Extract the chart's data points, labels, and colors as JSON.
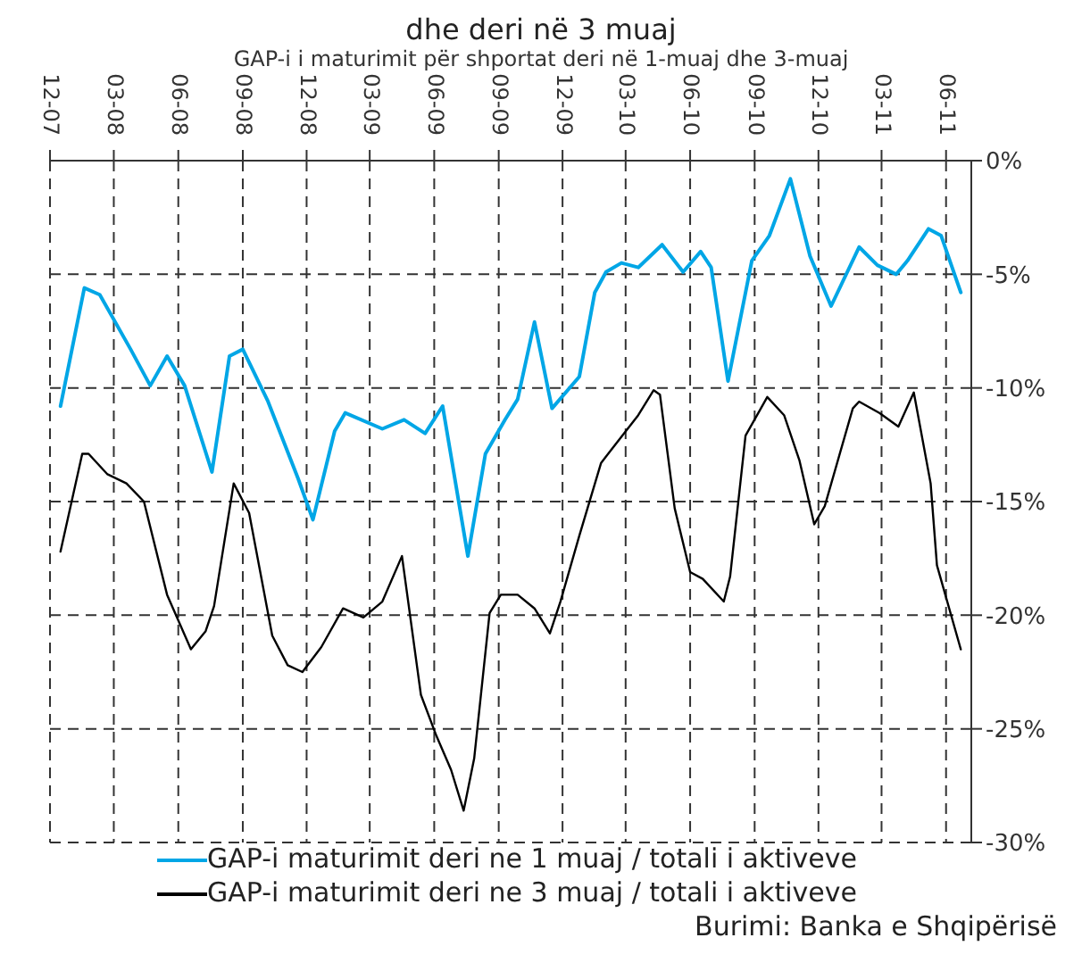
{
  "chart_data": {
    "type": "line",
    "title": "dhe deri në 3 muaj",
    "subtitle": "GAP-i i maturimit për shportat deri në 1-muaj dhe 3-muaj",
    "xlim": [
      "2007-12-01",
      "2011-07-07"
    ],
    "xticks": [
      {
        "value": "2007-12",
        "label": "12-07"
      },
      {
        "value": "2008-03",
        "label": "03-08"
      },
      {
        "value": "2008-06",
        "label": "06-08"
      },
      {
        "value": "2008-09",
        "label": "09-08"
      },
      {
        "value": "2008-12",
        "label": "12-08"
      },
      {
        "value": "2009-03",
        "label": "03-09"
      },
      {
        "value": "2009-06",
        "label": "06-09"
      },
      {
        "value": "2009-09",
        "label": "09-09"
      },
      {
        "value": "2009-12",
        "label": "12-09"
      },
      {
        "value": "2010-03",
        "label": "03-10"
      },
      {
        "value": "2010-06",
        "label": "06-10"
      },
      {
        "value": "2010-09",
        "label": "09-10"
      },
      {
        "value": "2010-12",
        "label": "12-10"
      },
      {
        "value": "2011-03",
        "label": "03-11"
      },
      {
        "value": "2011-06",
        "label": "06-11"
      }
    ],
    "ylim": [
      -30,
      0
    ],
    "yticks": [
      {
        "value": 0,
        "label": "0%"
      },
      {
        "value": -5,
        "label": "-5%"
      },
      {
        "value": -10,
        "label": "-10%"
      },
      {
        "value": -15,
        "label": "-15%"
      },
      {
        "value": -20,
        "label": "-20%"
      },
      {
        "value": -25,
        "label": "-25%"
      },
      {
        "value": -30,
        "label": "-30%"
      }
    ],
    "grid": true,
    "line_style": "solid",
    "legend": "bottom",
    "series": [
      {
        "name": "GAP-i maturimit deri ne 1 muaj / totali i aktiveve",
        "color": "#00a6e6",
        "x": [
          "2007-12-16",
          "2008-01-19",
          "2008-02-10",
          "2008-03-25",
          "2008-04-22",
          "2008-05-16",
          "2008-06-10",
          "2008-07-19",
          "2008-08-13",
          "2008-09-01",
          "2008-10-07",
          "2008-11-19",
          "2008-12-10",
          "2009-01-10",
          "2009-01-25",
          "2009-03-19",
          "2009-04-19",
          "2009-05-19",
          "2009-06-13",
          "2009-07-19",
          "2009-08-13",
          "2009-09-10",
          "2009-09-28",
          "2009-10-22",
          "2009-11-16",
          "2009-12-25",
          "2010-01-16",
          "2010-02-01",
          "2010-02-23",
          "2010-03-19",
          "2010-04-22",
          "2010-05-22",
          "2010-06-16",
          "2010-07-01",
          "2010-07-25",
          "2010-08-28",
          "2010-09-22",
          "2010-10-22",
          "2010-11-19",
          "2010-12-19",
          "2011-01-28",
          "2011-02-23",
          "2011-03-22",
          "2011-04-07",
          "2011-05-07",
          "2011-05-25",
          "2011-06-22"
        ],
        "values": [
          -10.8,
          -5.6,
          -5.9,
          -8.3,
          -9.9,
          -8.6,
          -9.9,
          -13.7,
          -8.6,
          -8.3,
          -10.6,
          -14.0,
          -15.8,
          -11.9,
          -11.1,
          -11.8,
          -11.4,
          -12.0,
          -10.8,
          -17.4,
          -12.9,
          -11.4,
          -10.5,
          -7.1,
          -10.9,
          -9.5,
          -5.8,
          -4.9,
          -4.5,
          -4.7,
          -3.7,
          -4.9,
          -4.0,
          -4.7,
          -9.7,
          -4.4,
          -3.3,
          -0.8,
          -4.2,
          -6.4,
          -3.8,
          -4.6,
          -5.0,
          -4.4,
          -3.0,
          -3.3,
          -5.8
        ]
      },
      {
        "name": "GAP-i maturimit deri ne 3 muaj / totali i aktiveve",
        "color": "#000000",
        "x": [
          "2007-12-16",
          "2008-01-16",
          "2008-01-25",
          "2008-02-21",
          "2008-03-19",
          "2008-04-13",
          "2008-05-16",
          "2008-06-19",
          "2008-07-10",
          "2008-07-22",
          "2008-08-19",
          "2008-09-10",
          "2008-10-13",
          "2008-11-04",
          "2008-11-25",
          "2008-12-22",
          "2009-01-22",
          "2009-02-20",
          "2009-03-19",
          "2009-04-16",
          "2009-05-13",
          "2009-06-04",
          "2009-06-25",
          "2009-07-13",
          "2009-07-28",
          "2009-08-19",
          "2009-09-04",
          "2009-09-28",
          "2009-10-22",
          "2009-11-13",
          "2009-11-28",
          "2009-12-25",
          "2010-01-25",
          "2010-02-09",
          "2010-03-19",
          "2010-04-10",
          "2010-04-19",
          "2010-05-10",
          "2010-06-01",
          "2010-06-19",
          "2010-07-19",
          "2010-07-28",
          "2010-08-19",
          "2010-09-19",
          "2010-10-13",
          "2010-11-04",
          "2010-11-25",
          "2010-12-10",
          "2011-01-19",
          "2011-01-28",
          "2011-02-26",
          "2011-03-25",
          "2011-04-16",
          "2011-05-10",
          "2011-05-19",
          "2011-06-22"
        ],
        "values": [
          -17.2,
          -12.9,
          -12.9,
          -13.8,
          -14.2,
          -15.0,
          -19.1,
          -21.5,
          -20.7,
          -19.6,
          -14.2,
          -15.5,
          -20.9,
          -22.2,
          -22.5,
          -21.4,
          -19.7,
          -20.1,
          -19.4,
          -17.4,
          -23.5,
          -25.3,
          -26.8,
          -28.6,
          -26.3,
          -19.9,
          -19.1,
          -19.1,
          -19.7,
          -20.8,
          -19.4,
          -16.5,
          -13.3,
          -12.7,
          -11.2,
          -10.1,
          -10.3,
          -15.3,
          -18.1,
          -18.4,
          -19.4,
          -18.3,
          -12.1,
          -10.4,
          -11.2,
          -13.2,
          -16.0,
          -15.2,
          -10.9,
          -10.6,
          -11.1,
          -11.7,
          -10.2,
          -14.2,
          -17.8,
          -21.5
        ]
      }
    ],
    "annotations": [
      "Burimi: Banka e Shqipërisë"
    ]
  }
}
